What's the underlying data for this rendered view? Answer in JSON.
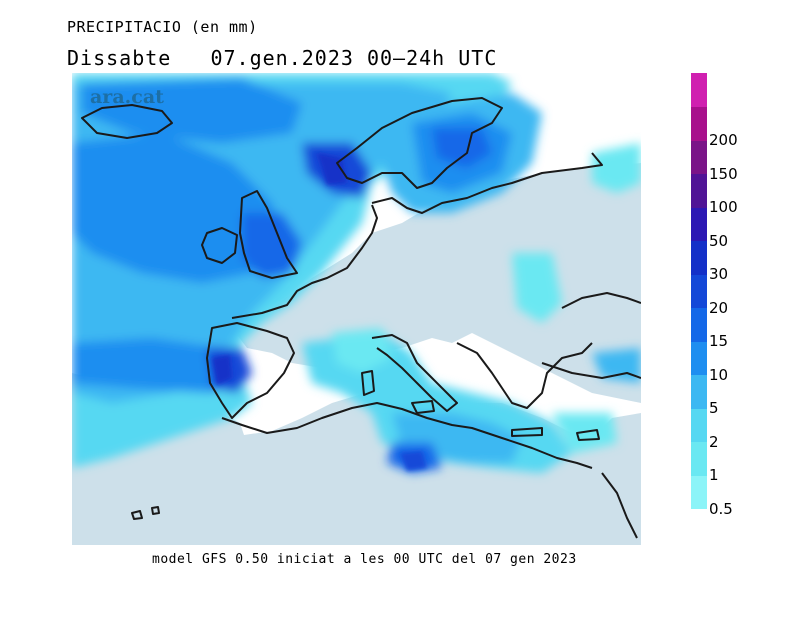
{
  "title": {
    "line1": "PRECIPITACIO (en mm)",
    "line2": "Dissabte   07.gen.2023 00—24h UTC"
  },
  "logo": "ara.cat",
  "footer": "model GFS 0.50 iniciat a les 00 UTC del 07 gen 2023",
  "legend": [
    {
      "label": "0.5",
      "color": "#8cf4f8"
    },
    {
      "label": "1",
      "color": "#6ae8f2"
    },
    {
      "label": "2",
      "color": "#56d8f2"
    },
    {
      "label": "5",
      "color": "#3cb8f2"
    },
    {
      "label": "10",
      "color": "#1e8ef0"
    },
    {
      "label": "15",
      "color": "#1468e8"
    },
    {
      "label": "20",
      "color": "#1448d8"
    },
    {
      "label": "30",
      "color": "#1430c8"
    },
    {
      "label": "50",
      "color": "#2c18b4"
    },
    {
      "label": "100",
      "color": "#501496"
    },
    {
      "label": "150",
      "color": "#7a1488"
    },
    {
      "label": "200",
      "color": "#a8108c"
    },
    {
      "label": "",
      "color": "#d020b0"
    }
  ],
  "colors": {
    "land": "#cde0ea",
    "coastline": "#1a1a1a"
  }
}
